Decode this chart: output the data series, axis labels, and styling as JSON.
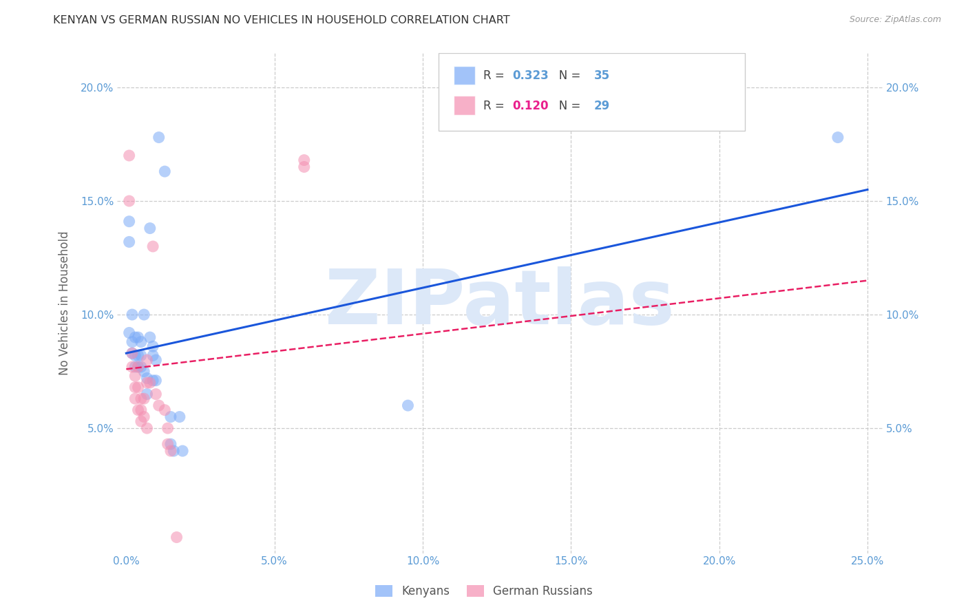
{
  "title": "KENYAN VS GERMAN RUSSIAN NO VEHICLES IN HOUSEHOLD CORRELATION CHART",
  "source": "Source: ZipAtlas.com",
  "ylabel": "No Vehicles in Household",
  "xlim": [
    -0.003,
    0.255
  ],
  "ylim": [
    -0.005,
    0.215
  ],
  "xticks": [
    0.0,
    0.05,
    0.1,
    0.15,
    0.2,
    0.25
  ],
  "yticks": [
    0.05,
    0.1,
    0.15,
    0.2
  ],
  "xtick_labels": [
    "0.0%",
    "5.0%",
    "10.0%",
    "15.0%",
    "20.0%",
    "25.0%"
  ],
  "ytick_labels": [
    "5.0%",
    "10.0%",
    "15.0%",
    "20.0%"
  ],
  "kenyan_color": "#7baaf7",
  "german_color": "#f48fb1",
  "kenyan_line_color": "#1a56db",
  "german_line_color": "#e91e63",
  "kenyan_scatter": [
    [
      0.001,
      0.141
    ],
    [
      0.001,
      0.132
    ],
    [
      0.001,
      0.092
    ],
    [
      0.002,
      0.1
    ],
    [
      0.002,
      0.088
    ],
    [
      0.002,
      0.083
    ],
    [
      0.003,
      0.09
    ],
    [
      0.003,
      0.082
    ],
    [
      0.003,
      0.077
    ],
    [
      0.004,
      0.09
    ],
    [
      0.004,
      0.082
    ],
    [
      0.004,
      0.077
    ],
    [
      0.005,
      0.088
    ],
    [
      0.005,
      0.082
    ],
    [
      0.005,
      0.077
    ],
    [
      0.006,
      0.1
    ],
    [
      0.006,
      0.075
    ],
    [
      0.007,
      0.072
    ],
    [
      0.007,
      0.065
    ],
    [
      0.008,
      0.138
    ],
    [
      0.008,
      0.09
    ],
    [
      0.009,
      0.086
    ],
    [
      0.009,
      0.082
    ],
    [
      0.009,
      0.071
    ],
    [
      0.01,
      0.08
    ],
    [
      0.01,
      0.071
    ],
    [
      0.011,
      0.178
    ],
    [
      0.013,
      0.163
    ],
    [
      0.015,
      0.055
    ],
    [
      0.015,
      0.043
    ],
    [
      0.016,
      0.04
    ],
    [
      0.018,
      0.055
    ],
    [
      0.019,
      0.04
    ],
    [
      0.24,
      0.178
    ],
    [
      0.095,
      0.06
    ]
  ],
  "german_scatter": [
    [
      0.001,
      0.17
    ],
    [
      0.001,
      0.15
    ],
    [
      0.002,
      0.083
    ],
    [
      0.002,
      0.077
    ],
    [
      0.003,
      0.073
    ],
    [
      0.003,
      0.068
    ],
    [
      0.003,
      0.063
    ],
    [
      0.004,
      0.077
    ],
    [
      0.004,
      0.068
    ],
    [
      0.004,
      0.058
    ],
    [
      0.005,
      0.063
    ],
    [
      0.005,
      0.058
    ],
    [
      0.005,
      0.053
    ],
    [
      0.006,
      0.063
    ],
    [
      0.006,
      0.055
    ],
    [
      0.007,
      0.08
    ],
    [
      0.007,
      0.07
    ],
    [
      0.007,
      0.05
    ],
    [
      0.008,
      0.07
    ],
    [
      0.009,
      0.13
    ],
    [
      0.01,
      0.065
    ],
    [
      0.011,
      0.06
    ],
    [
      0.013,
      0.058
    ],
    [
      0.014,
      0.05
    ],
    [
      0.014,
      0.043
    ],
    [
      0.015,
      0.04
    ],
    [
      0.017,
      0.002
    ],
    [
      0.06,
      0.168
    ],
    [
      0.06,
      0.165
    ]
  ],
  "kenyan_line_x": [
    0.0,
    0.25
  ],
  "kenyan_line_y": [
    0.083,
    0.155
  ],
  "german_line_x": [
    0.0,
    0.25
  ],
  "german_line_y": [
    0.076,
    0.115
  ],
  "kenyan_scatter_size": 150,
  "german_scatter_size": 150,
  "background_color": "#ffffff",
  "grid_color": "#cccccc",
  "title_color": "#333333",
  "axis_label_color": "#666666",
  "tick_label_color": "#5b9bd5",
  "watermark_text": "ZIPatlas",
  "watermark_color": "#dce8f8",
  "watermark_fontsize": 80,
  "legend_r1": "R = ",
  "legend_r1_val": "0.323",
  "legend_n1": "   N = ",
  "legend_n1_val": "35",
  "legend_r2": "R = ",
  "legend_r2_val": "0.120",
  "legend_n2": "   N = ",
  "legend_n2_val": "29",
  "legend_val_color": "#5b9bd5",
  "bottom_legend_kenyans": "Kenyans",
  "bottom_legend_german": "German Russians"
}
